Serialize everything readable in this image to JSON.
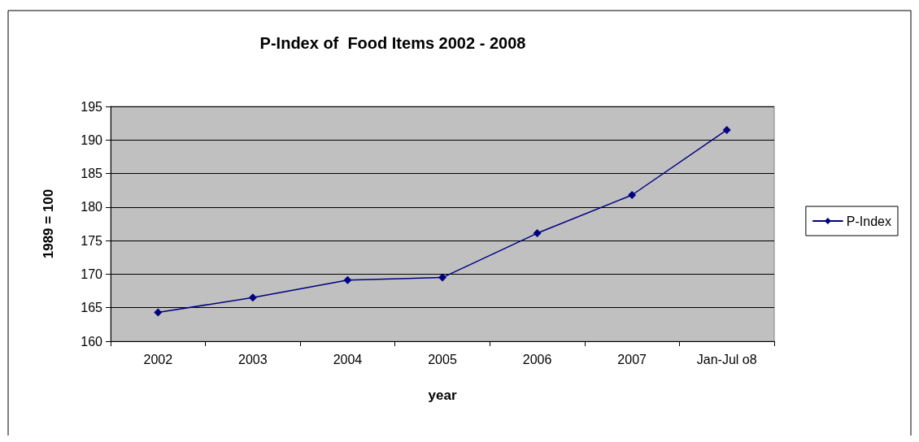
{
  "chart_data": {
    "type": "line",
    "title": "P-Index of  Food Items 2002 - 2008",
    "xlabel": "year",
    "ylabel": "1989 = 100",
    "categories": [
      "2002",
      "2003",
      "2004",
      "2005",
      "2006",
      "2007",
      "Jan-Jul o8"
    ],
    "series": [
      {
        "name": "P-Index",
        "color": "#000080",
        "values": [
          164.3,
          166.5,
          169.1,
          169.5,
          176.1,
          181.8,
          191.5
        ]
      }
    ],
    "ylim": [
      160,
      195
    ],
    "yticks": [
      160,
      165,
      170,
      175,
      180,
      185,
      190,
      195
    ],
    "grid": "y",
    "legend": "right",
    "marker": "diamond",
    "line_style": "solid"
  }
}
